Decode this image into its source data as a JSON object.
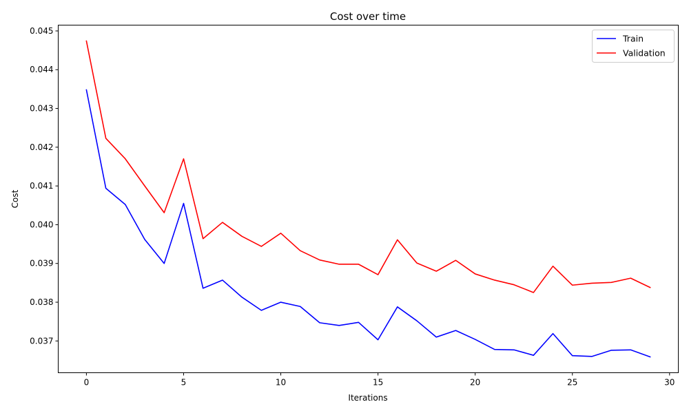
{
  "chart_data": {
    "type": "line",
    "title": "Cost over time",
    "xlabel": "Iterations",
    "ylabel": "Cost",
    "xlim": [
      -1.45,
      30.45
    ],
    "ylim": [
      0.03618,
      0.04515
    ],
    "xticks": [
      0,
      5,
      10,
      15,
      20,
      25,
      30
    ],
    "yticks": [
      0.037,
      0.038,
      0.039,
      0.04,
      0.041,
      0.042,
      0.043,
      0.044,
      0.045
    ],
    "ytick_labels": [
      "0.037",
      "0.038",
      "0.039",
      "0.040",
      "0.041",
      "0.042",
      "0.043",
      "0.044",
      "0.045"
    ],
    "grid": false,
    "legend_position": "top-right",
    "x": [
      0,
      1,
      2,
      3,
      4,
      5,
      6,
      7,
      8,
      9,
      10,
      11,
      12,
      13,
      14,
      15,
      16,
      17,
      18,
      19,
      20,
      21,
      22,
      23,
      24,
      25,
      26,
      27,
      28,
      29
    ],
    "series": [
      {
        "name": "Train",
        "color": "#0000ff",
        "values": [
          0.04348,
          0.04094,
          0.04052,
          0.03962,
          0.039,
          0.04055,
          0.03836,
          0.03857,
          0.03813,
          0.03779,
          0.038,
          0.03789,
          0.03747,
          0.0374,
          0.03748,
          0.03703,
          0.03788,
          0.03752,
          0.0371,
          0.03727,
          0.03704,
          0.03678,
          0.03677,
          0.03663,
          0.03719,
          0.03662,
          0.0366,
          0.03676,
          0.03677,
          0.03659
        ]
      },
      {
        "name": "Validation",
        "color": "#ff0000",
        "values": [
          0.04474,
          0.04223,
          0.0417,
          0.041,
          0.04031,
          0.0417,
          0.03964,
          0.04006,
          0.0397,
          0.03944,
          0.03978,
          0.03933,
          0.03909,
          0.03898,
          0.03898,
          0.03871,
          0.03961,
          0.03901,
          0.0388,
          0.03908,
          0.03873,
          0.03857,
          0.03845,
          0.03825,
          0.03893,
          0.03844,
          0.03849,
          0.03851,
          0.03862,
          0.03838
        ]
      }
    ]
  }
}
